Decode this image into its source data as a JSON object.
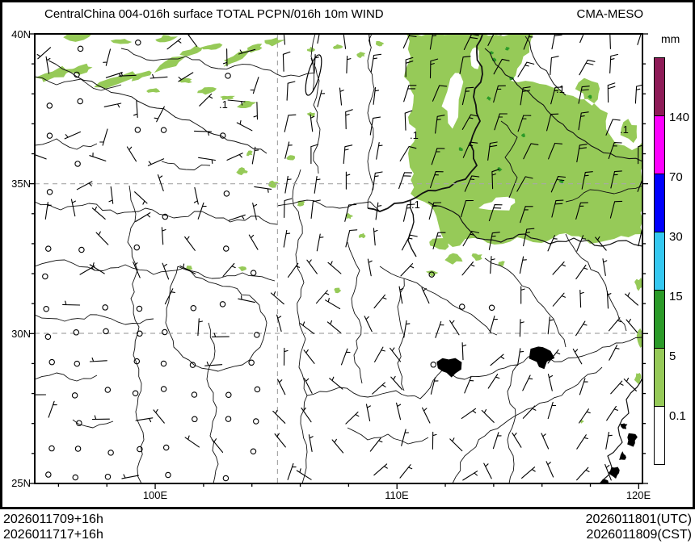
{
  "header": {
    "title": "CentralChina 004-016h surface TOTAL PCPN/016h 10m WIND",
    "model": "CMA-MESO"
  },
  "colorbar": {
    "unit": "mm",
    "segments": [
      {
        "color": "#8e1b57",
        "label": ""
      },
      {
        "color": "#fd00fd",
        "label": "140"
      },
      {
        "color": "#0000fe",
        "label": "70"
      },
      {
        "color": "#35c8f0",
        "label": "30"
      },
      {
        "color": "#2b9b28",
        "label": "15"
      },
      {
        "color": "#96ca58",
        "label": "5"
      },
      {
        "color": "#ffffff",
        "label": "0.1"
      }
    ]
  },
  "axes": {
    "lat": [
      {
        "label": "40N"
      },
      {
        "label": "35N"
      },
      {
        "label": "30N"
      },
      {
        "label": "25N"
      }
    ],
    "lon": [
      {
        "label": "100E"
      },
      {
        "label": "110E"
      },
      {
        "label": "120E"
      }
    ]
  },
  "contour_labels": [
    {
      "text": ".1"
    },
    {
      "text": ".1"
    },
    {
      "text": ".1"
    },
    {
      "text": ".1"
    },
    {
      "text": ".1"
    }
  ],
  "footer": {
    "init_line1": "2026011709+16h",
    "init_line2": "2026011717+16h",
    "valid_utc": "2026011801(UTC)",
    "valid_cst": "2026011809(CST)"
  },
  "colors": {
    "precip_light": "#96ca58",
    "precip_dark": "#2b9b28",
    "gridline": "#a8a8a8",
    "map_line": "#111111",
    "barb": "#000000"
  },
  "wind": {
    "seed": 7,
    "grid_dx": 36.5,
    "grid_dy": 35.7,
    "staff_len": 21,
    "calm_radius": 3.2
  }
}
